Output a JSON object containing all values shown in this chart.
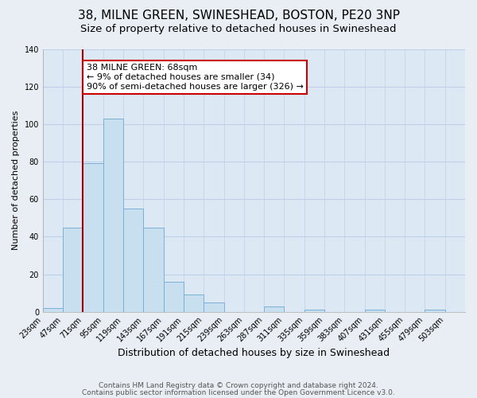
{
  "title": "38, MILNE GREEN, SWINESHEAD, BOSTON, PE20 3NP",
  "subtitle": "Size of property relative to detached houses in Swineshead",
  "xlabel": "Distribution of detached houses by size in Swineshead",
  "ylabel": "Number of detached properties",
  "bar_color": "#c8dff0",
  "bar_edge_color": "#7aafd4",
  "background_color": "#e8eef4",
  "plot_bg_color": "#dce8f4",
  "bins_left": [
    23,
    47,
    71,
    95,
    119,
    143,
    167,
    191,
    215,
    239,
    263,
    287,
    311,
    335,
    359,
    383,
    407,
    431,
    455,
    479
  ],
  "bin_width": 24,
  "counts": [
    2,
    45,
    79,
    103,
    55,
    45,
    16,
    9,
    5,
    0,
    0,
    3,
    0,
    1,
    0,
    0,
    1,
    0,
    0,
    1
  ],
  "ylim": [
    0,
    140
  ],
  "yticks": [
    0,
    20,
    40,
    60,
    80,
    100,
    120,
    140
  ],
  "property_line_x": 71,
  "annotation_title": "38 MILNE GREEN: 68sqm",
  "annotation_line1": "← 9% of detached houses are smaller (34)",
  "annotation_line2": "90% of semi-detached houses are larger (326) →",
  "annotation_box_color": "#ffffff",
  "annotation_box_edge": "#cc0000",
  "property_line_color": "#aa0000",
  "footer1": "Contains HM Land Registry data © Crown copyright and database right 2024.",
  "footer2": "Contains public sector information licensed under the Open Government Licence v3.0.",
  "tick_labels": [
    "23sqm",
    "47sqm",
    "71sqm",
    "95sqm",
    "119sqm",
    "143sqm",
    "167sqm",
    "191sqm",
    "215sqm",
    "239sqm",
    "263sqm",
    "287sqm",
    "311sqm",
    "335sqm",
    "359sqm",
    "383sqm",
    "407sqm",
    "431sqm",
    "455sqm",
    "479sqm",
    "503sqm"
  ],
  "title_fontsize": 11,
  "subtitle_fontsize": 9.5,
  "xlabel_fontsize": 9,
  "ylabel_fontsize": 8,
  "tick_fontsize": 7,
  "annotation_fontsize": 8,
  "footer_fontsize": 6.5,
  "grid_color": "#c0d0e8"
}
